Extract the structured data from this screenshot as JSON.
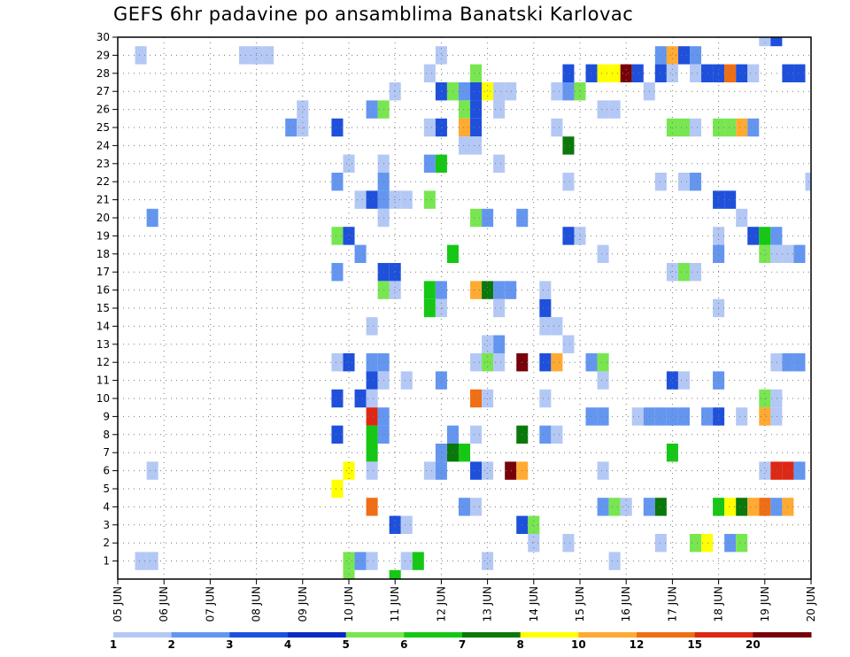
{
  "chart_data": {
    "type": "heatmap",
    "title": "GEFS 6hr padavine po ansamblima Banatski Karlovac",
    "x_tick_labels": [
      "05 JUN",
      "06 JUN",
      "07 JUN",
      "08 JUN",
      "09 JUN",
      "10 JUN",
      "11 JUN",
      "12 JUN",
      "13 JUN",
      "14 JUN",
      "15 JUN",
      "16 JUN",
      "17 JUN",
      "18 JUN",
      "19 JUN",
      "20 JUN"
    ],
    "y_tick_labels": [
      "1",
      "2",
      "3",
      "4",
      "5",
      "6",
      "7",
      "8",
      "9",
      "10",
      "11",
      "12",
      "13",
      "14",
      "15",
      "16",
      "17",
      "18",
      "19",
      "20",
      "21",
      "22",
      "23",
      "24",
      "25",
      "26",
      "27",
      "28",
      "29",
      "30"
    ],
    "x_range_days": [
      0,
      15
    ],
    "y_range": [
      0,
      30
    ],
    "grid": true,
    "colorbar": {
      "labels": [
        "1",
        "2",
        "3",
        "4",
        "5",
        "6",
        "7",
        "8",
        "10",
        "12",
        "15",
        "20"
      ],
      "colors": [
        "#b4c8f5",
        "#6496f0",
        "#1e50dc",
        "#0a2ac8",
        "#78e650",
        "#14c814",
        "#0a780a",
        "#ffff00",
        "#ffaa32",
        "#f06e14",
        "#dc2814",
        "#78000a"
      ]
    },
    "cells": [
      [
        0.5,
        29,
        1
      ],
      [
        0.5,
        1,
        1
      ],
      [
        0.75,
        1,
        1
      ],
      [
        0.75,
        6,
        1
      ],
      [
        0.75,
        20,
        2
      ],
      [
        2.75,
        29,
        1
      ],
      [
        3.0,
        29,
        1
      ],
      [
        3.25,
        29,
        1
      ],
      [
        3.75,
        25,
        2
      ],
      [
        4.0,
        25,
        1
      ],
      [
        4.0,
        26,
        1
      ],
      [
        4.75,
        25,
        3
      ],
      [
        4.75,
        22,
        2
      ],
      [
        4.75,
        19,
        5
      ],
      [
        4.75,
        17,
        2
      ],
      [
        4.75,
        12,
        1
      ],
      [
        4.75,
        10,
        3
      ],
      [
        4.75,
        8,
        3
      ],
      [
        4.75,
        5,
        8
      ],
      [
        5.0,
        23,
        1
      ],
      [
        5.0,
        19,
        3
      ],
      [
        5.0,
        12,
        3
      ],
      [
        5.0,
        6,
        8
      ],
      [
        5.0,
        1,
        5
      ],
      [
        5.0,
        0,
        5
      ],
      [
        5.25,
        21,
        1
      ],
      [
        5.25,
        18,
        2
      ],
      [
        5.25,
        10,
        3
      ],
      [
        5.25,
        1,
        2
      ],
      [
        5.5,
        26,
        2
      ],
      [
        5.5,
        21,
        3
      ],
      [
        5.5,
        14,
        1
      ],
      [
        5.5,
        12,
        2
      ],
      [
        5.5,
        11,
        3
      ],
      [
        5.5,
        10,
        1
      ],
      [
        5.5,
        9,
        15
      ],
      [
        5.5,
        8,
        6
      ],
      [
        5.5,
        7,
        6
      ],
      [
        5.5,
        6,
        1
      ],
      [
        5.5,
        4,
        12
      ],
      [
        5.5,
        1,
        1
      ],
      [
        5.75,
        26,
        5
      ],
      [
        5.75,
        23,
        1
      ],
      [
        5.75,
        22,
        2
      ],
      [
        5.75,
        21,
        2
      ],
      [
        5.75,
        20,
        1
      ],
      [
        5.75,
        17,
        3
      ],
      [
        5.75,
        16,
        5
      ],
      [
        5.75,
        12,
        2
      ],
      [
        5.75,
        11,
        1
      ],
      [
        5.75,
        9,
        2
      ],
      [
        5.75,
        8,
        2
      ],
      [
        6.0,
        27,
        1
      ],
      [
        6.0,
        21,
        1
      ],
      [
        6.0,
        17,
        3
      ],
      [
        6.0,
        16,
        1
      ],
      [
        6.0,
        3,
        3
      ],
      [
        6.0,
        0,
        6
      ],
      [
        6.25,
        21,
        1
      ],
      [
        6.25,
        11,
        1
      ],
      [
        6.25,
        3,
        1
      ],
      [
        6.25,
        1,
        1
      ],
      [
        6.5,
        1,
        6
      ],
      [
        6.75,
        28,
        1
      ],
      [
        6.75,
        25,
        1
      ],
      [
        6.75,
        23,
        2
      ],
      [
        6.75,
        21,
        5
      ],
      [
        6.75,
        16,
        6
      ],
      [
        6.75,
        15,
        6
      ],
      [
        6.75,
        6,
        1
      ],
      [
        7.0,
        29,
        1
      ],
      [
        7.0,
        27,
        3
      ],
      [
        7.0,
        25,
        3
      ],
      [
        7.0,
        23,
        6
      ],
      [
        7.0,
        16,
        2
      ],
      [
        7.0,
        15,
        1
      ],
      [
        7.0,
        11,
        2
      ],
      [
        7.0,
        7,
        2
      ],
      [
        7.0,
        6,
        2
      ],
      [
        7.25,
        27,
        5
      ],
      [
        7.25,
        18,
        6
      ],
      [
        7.25,
        8,
        2
      ],
      [
        7.25,
        7,
        7
      ],
      [
        7.5,
        27,
        2
      ],
      [
        7.5,
        26,
        5
      ],
      [
        7.5,
        25,
        10
      ],
      [
        7.5,
        24,
        1
      ],
      [
        7.5,
        7,
        6
      ],
      [
        7.5,
        4,
        2
      ],
      [
        7.75,
        28,
        5
      ],
      [
        7.75,
        27,
        3
      ],
      [
        7.75,
        26,
        3
      ],
      [
        7.75,
        25,
        3
      ],
      [
        7.75,
        24,
        1
      ],
      [
        7.75,
        20,
        5
      ],
      [
        7.75,
        16,
        10
      ],
      [
        7.75,
        12,
        1
      ],
      [
        7.75,
        10,
        12
      ],
      [
        7.75,
        8,
        1
      ],
      [
        7.75,
        6,
        3
      ],
      [
        7.75,
        4,
        1
      ],
      [
        8.0,
        27,
        8
      ],
      [
        8.0,
        20,
        2
      ],
      [
        8.0,
        16,
        7
      ],
      [
        8.0,
        13,
        1
      ],
      [
        8.0,
        12,
        5
      ],
      [
        8.0,
        10,
        1
      ],
      [
        8.0,
        6,
        1
      ],
      [
        8.0,
        1,
        1
      ],
      [
        8.25,
        27,
        1
      ],
      [
        8.25,
        26,
        1
      ],
      [
        8.25,
        23,
        1
      ],
      [
        8.25,
        16,
        2
      ],
      [
        8.25,
        15,
        1
      ],
      [
        8.25,
        13,
        2
      ],
      [
        8.25,
        12,
        1
      ],
      [
        8.5,
        27,
        1
      ],
      [
        8.5,
        16,
        2
      ],
      [
        8.5,
        6,
        20
      ],
      [
        8.75,
        20,
        2
      ],
      [
        8.75,
        12,
        20
      ],
      [
        8.75,
        8,
        7
      ],
      [
        8.75,
        6,
        10
      ],
      [
        8.75,
        3,
        3
      ],
      [
        9.0,
        3,
        5
      ],
      [
        9.0,
        2,
        1
      ],
      [
        9.25,
        15,
        3
      ],
      [
        9.25,
        14,
        1
      ],
      [
        9.25,
        12,
        3
      ],
      [
        9.25,
        10,
        1
      ],
      [
        9.25,
        8,
        2
      ],
      [
        9.25,
        16,
        1
      ],
      [
        9.5,
        27,
        1
      ],
      [
        9.5,
        25,
        1
      ],
      [
        9.5,
        14,
        1
      ],
      [
        9.5,
        12,
        10
      ],
      [
        9.5,
        8,
        1
      ],
      [
        9.75,
        28,
        3
      ],
      [
        9.75,
        27,
        2
      ],
      [
        9.75,
        24,
        7
      ],
      [
        9.75,
        22,
        1
      ],
      [
        9.75,
        19,
        3
      ],
      [
        9.75,
        13,
        1
      ],
      [
        9.75,
        2,
        1
      ],
      [
        10.0,
        27,
        5
      ],
      [
        10.0,
        19,
        1
      ],
      [
        10.25,
        28,
        3
      ],
      [
        10.25,
        12,
        2
      ],
      [
        10.25,
        9,
        2
      ],
      [
        10.5,
        28,
        8
      ],
      [
        10.5,
        26,
        1
      ],
      [
        10.5,
        18,
        1
      ],
      [
        10.5,
        12,
        5
      ],
      [
        10.5,
        11,
        1
      ],
      [
        10.5,
        9,
        2
      ],
      [
        10.5,
        6,
        1
      ],
      [
        10.5,
        4,
        2
      ],
      [
        10.75,
        28,
        8
      ],
      [
        10.75,
        26,
        1
      ],
      [
        10.75,
        4,
        5
      ],
      [
        10.75,
        1,
        1
      ],
      [
        11.0,
        28,
        20
      ],
      [
        11.0,
        4,
        1
      ],
      [
        11.25,
        28,
        3
      ],
      [
        11.25,
        9,
        1
      ],
      [
        11.5,
        27,
        1
      ],
      [
        11.5,
        9,
        2
      ],
      [
        11.5,
        4,
        2
      ],
      [
        11.75,
        29,
        2
      ],
      [
        11.75,
        28,
        3
      ],
      [
        11.75,
        22,
        1
      ],
      [
        11.75,
        9,
        2
      ],
      [
        11.75,
        4,
        7
      ],
      [
        11.75,
        2,
        1
      ],
      [
        12.0,
        29,
        10
      ],
      [
        12.0,
        28,
        1
      ],
      [
        12.0,
        25,
        5
      ],
      [
        12.0,
        17,
        1
      ],
      [
        12.0,
        11,
        3
      ],
      [
        12.0,
        9,
        2
      ],
      [
        12.0,
        7,
        6
      ],
      [
        12.25,
        29,
        3
      ],
      [
        12.25,
        25,
        5
      ],
      [
        12.25,
        22,
        1
      ],
      [
        12.25,
        17,
        5
      ],
      [
        12.25,
        11,
        1
      ],
      [
        12.25,
        9,
        2
      ],
      [
        12.5,
        29,
        2
      ],
      [
        12.5,
        28,
        1
      ],
      [
        12.5,
        25,
        1
      ],
      [
        12.5,
        22,
        2
      ],
      [
        12.5,
        17,
        1
      ],
      [
        12.5,
        2,
        5
      ],
      [
        12.75,
        28,
        3
      ],
      [
        12.75,
        9,
        2
      ],
      [
        12.75,
        2,
        8
      ],
      [
        13.0,
        28,
        3
      ],
      [
        13.0,
        25,
        5
      ],
      [
        13.0,
        21,
        3
      ],
      [
        13.0,
        19,
        1
      ],
      [
        13.0,
        18,
        2
      ],
      [
        13.0,
        15,
        1
      ],
      [
        13.0,
        11,
        2
      ],
      [
        13.0,
        9,
        3
      ],
      [
        13.0,
        4,
        6
      ],
      [
        13.25,
        28,
        12
      ],
      [
        13.25,
        25,
        5
      ],
      [
        13.25,
        21,
        3
      ],
      [
        13.25,
        4,
        8
      ],
      [
        13.25,
        2,
        2
      ],
      [
        13.5,
        28,
        3
      ],
      [
        13.5,
        25,
        10
      ],
      [
        13.5,
        20,
        1
      ],
      [
        13.5,
        9,
        1
      ],
      [
        13.5,
        4,
        7
      ],
      [
        13.5,
        2,
        5
      ],
      [
        13.75,
        28,
        1
      ],
      [
        13.75,
        25,
        2
      ],
      [
        13.75,
        19,
        3
      ],
      [
        13.75,
        4,
        10
      ],
      [
        14.0,
        30,
        1
      ],
      [
        14.0,
        19,
        6
      ],
      [
        14.0,
        18,
        5
      ],
      [
        14.0,
        10,
        5
      ],
      [
        14.0,
        9,
        10
      ],
      [
        14.0,
        6,
        1
      ],
      [
        14.0,
        4,
        12
      ],
      [
        14.25,
        30,
        3
      ],
      [
        14.25,
        19,
        2
      ],
      [
        14.25,
        18,
        1
      ],
      [
        14.25,
        12,
        1
      ],
      [
        14.25,
        10,
        1
      ],
      [
        14.25,
        9,
        1
      ],
      [
        14.25,
        6,
        15
      ],
      [
        14.25,
        4,
        2
      ],
      [
        14.5,
        28,
        3
      ],
      [
        14.5,
        18,
        1
      ],
      [
        14.5,
        12,
        2
      ],
      [
        14.5,
        6,
        15
      ],
      [
        14.5,
        4,
        10
      ],
      [
        14.75,
        28,
        3
      ],
      [
        14.75,
        18,
        2
      ],
      [
        14.75,
        12,
        2
      ],
      [
        14.75,
        6,
        2
      ],
      [
        15.0,
        22,
        1
      ]
    ]
  }
}
